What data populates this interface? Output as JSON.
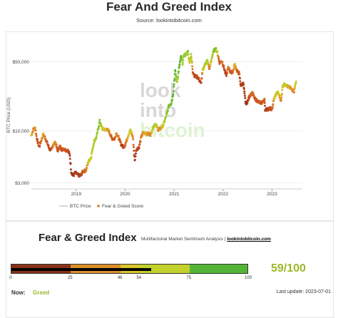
{
  "header": {
    "title": "Fear And Greed Index",
    "source": "Source: lookintobitcoin.com"
  },
  "chart_data": {
    "type": "scatter",
    "ylabel": "BTC Price (USD)",
    "yscale": "log",
    "ylim": [
      2600,
      80000
    ],
    "y_ticks": [
      {
        "v": 3000,
        "label": "$3,000"
      },
      {
        "v": 10000,
        "label": "$10,000"
      },
      {
        "v": 50000,
        "label": "$50,000"
      }
    ],
    "xlim": [
      "2018-02-01",
      "2023-08-15"
    ],
    "x_ticks": [
      "2019",
      "2020",
      "2021",
      "2022",
      "2023"
    ],
    "legend": [
      "BTC Price",
      "Fear & Greed Score"
    ],
    "watermark": [
      "look",
      "into",
      "bitcoin"
    ],
    "series": [
      {
        "name": "BTC Price",
        "points": [
          [
            "2018-02-01",
            9000,
            55
          ],
          [
            "2018-02-15",
            10300,
            40
          ],
          [
            "2018-03-01",
            10800,
            45
          ],
          [
            "2018-03-15",
            8200,
            25
          ],
          [
            "2018-04-01",
            6900,
            20
          ],
          [
            "2018-04-15",
            8000,
            35
          ],
          [
            "2018-05-01",
            9200,
            50
          ],
          [
            "2018-05-15",
            8500,
            35
          ],
          [
            "2018-06-01",
            7500,
            25
          ],
          [
            "2018-06-15",
            6600,
            20
          ],
          [
            "2018-07-01",
            6400,
            20
          ],
          [
            "2018-07-15",
            7400,
            40
          ],
          [
            "2018-08-01",
            7600,
            45
          ],
          [
            "2018-08-15",
            6300,
            20
          ],
          [
            "2018-09-01",
            7000,
            30
          ],
          [
            "2018-09-15",
            6500,
            25
          ],
          [
            "2018-10-01",
            6600,
            25
          ],
          [
            "2018-10-15",
            6400,
            25
          ],
          [
            "2018-11-01",
            6350,
            25
          ],
          [
            "2018-11-15",
            5700,
            15
          ],
          [
            "2018-11-25",
            3900,
            10
          ],
          [
            "2018-12-10",
            3500,
            10
          ],
          [
            "2018-12-25",
            3800,
            15
          ],
          [
            "2019-01-15",
            3600,
            15
          ],
          [
            "2019-02-01",
            3500,
            15
          ],
          [
            "2019-02-20",
            3900,
            25
          ],
          [
            "2019-03-15",
            4000,
            35
          ],
          [
            "2019-04-03",
            4950,
            55
          ],
          [
            "2019-04-20",
            5300,
            60
          ],
          [
            "2019-05-15",
            7900,
            70
          ],
          [
            "2019-06-01",
            8600,
            72
          ],
          [
            "2019-06-26",
            12500,
            85
          ],
          [
            "2019-07-15",
            10500,
            60
          ],
          [
            "2019-08-01",
            10300,
            55
          ],
          [
            "2019-08-15",
            10400,
            50
          ],
          [
            "2019-09-01",
            10000,
            45
          ],
          [
            "2019-09-25",
            8400,
            25
          ],
          [
            "2019-10-15",
            8300,
            25
          ],
          [
            "2019-10-27",
            9500,
            45
          ],
          [
            "2019-11-15",
            8500,
            35
          ],
          [
            "2019-12-01",
            7400,
            20
          ],
          [
            "2019-12-18",
            6900,
            15
          ],
          [
            "2020-01-01",
            7200,
            30
          ],
          [
            "2020-01-20",
            8700,
            50
          ],
          [
            "2020-02-10",
            10200,
            60
          ],
          [
            "2020-02-28",
            8700,
            40
          ],
          [
            "2020-03-13",
            5000,
            10
          ],
          [
            "2020-03-25",
            6500,
            15
          ],
          [
            "2020-04-15",
            6900,
            20
          ],
          [
            "2020-05-01",
            8800,
            40
          ],
          [
            "2020-05-15",
            9600,
            45
          ],
          [
            "2020-06-01",
            9500,
            50
          ],
          [
            "2020-06-20",
            9300,
            45
          ],
          [
            "2020-07-10",
            9200,
            40
          ],
          [
            "2020-07-28",
            11000,
            65
          ],
          [
            "2020-08-15",
            11800,
            75
          ],
          [
            "2020-09-05",
            10200,
            40
          ],
          [
            "2020-09-25",
            10700,
            45
          ],
          [
            "2020-10-10",
            11300,
            55
          ],
          [
            "2020-10-25",
            13000,
            70
          ],
          [
            "2020-11-10",
            15300,
            80
          ],
          [
            "2020-11-25",
            18500,
            85
          ],
          [
            "2020-12-10",
            18800,
            85
          ],
          [
            "2020-12-25",
            24000,
            90
          ],
          [
            "2021-01-08",
            40000,
            94
          ],
          [
            "2021-01-22",
            31000,
            70
          ],
          [
            "2021-02-08",
            44000,
            90
          ],
          [
            "2021-02-21",
            56000,
            93
          ],
          [
            "2021-03-05",
            48000,
            70
          ],
          [
            "2021-03-15",
            58000,
            80
          ],
          [
            "2021-04-01",
            59000,
            75
          ],
          [
            "2021-04-14",
            63500,
            80
          ],
          [
            "2021-04-25",
            49000,
            55
          ],
          [
            "2021-05-08",
            58000,
            70
          ],
          [
            "2021-05-20",
            40000,
            25
          ],
          [
            "2021-06-01",
            36000,
            20
          ],
          [
            "2021-06-20",
            35000,
            20
          ],
          [
            "2021-07-01",
            34000,
            20
          ],
          [
            "2021-07-20",
            30000,
            15
          ],
          [
            "2021-08-01",
            40000,
            50
          ],
          [
            "2021-08-15",
            46000,
            70
          ],
          [
            "2021-09-05",
            51000,
            75
          ],
          [
            "2021-09-20",
            43000,
            30
          ],
          [
            "2021-10-01",
            48000,
            60
          ],
          [
            "2021-10-20",
            64000,
            80
          ],
          [
            "2021-11-10",
            67000,
            83
          ],
          [
            "2021-11-25",
            57000,
            40
          ],
          [
            "2021-12-05",
            49000,
            25
          ],
          [
            "2021-12-25",
            50500,
            35
          ],
          [
            "2022-01-10",
            42000,
            20
          ],
          [
            "2022-01-24",
            36000,
            15
          ],
          [
            "2022-02-10",
            44000,
            40
          ],
          [
            "2022-02-25",
            39000,
            25
          ],
          [
            "2022-03-15",
            39500,
            30
          ],
          [
            "2022-03-29",
            47000,
            55
          ],
          [
            "2022-04-15",
            40000,
            30
          ],
          [
            "2022-05-01",
            38000,
            25
          ],
          [
            "2022-05-12",
            29000,
            15
          ],
          [
            "2022-06-01",
            30000,
            15
          ],
          [
            "2022-06-18",
            19000,
            10
          ],
          [
            "2022-07-01",
            19500,
            12
          ],
          [
            "2022-07-20",
            23000,
            25
          ],
          [
            "2022-08-10",
            24000,
            35
          ],
          [
            "2022-08-25",
            21000,
            25
          ],
          [
            "2022-09-15",
            20000,
            25
          ],
          [
            "2022-10-01",
            19300,
            25
          ],
          [
            "2022-10-20",
            19200,
            25
          ],
          [
            "2022-11-05",
            21000,
            30
          ],
          [
            "2022-11-10",
            16500,
            15
          ],
          [
            "2022-11-25",
            16500,
            15
          ],
          [
            "2022-12-15",
            16800,
            20
          ],
          [
            "2023-01-01",
            16600,
            25
          ],
          [
            "2023-01-15",
            20800,
            50
          ],
          [
            "2023-02-01",
            23700,
            60
          ],
          [
            "2023-02-15",
            24500,
            60
          ],
          [
            "2023-03-10",
            20000,
            40
          ],
          [
            "2023-03-20",
            28000,
            60
          ],
          [
            "2023-04-10",
            30000,
            65
          ],
          [
            "2023-04-25",
            28000,
            50
          ],
          [
            "2023-05-10",
            27500,
            50
          ],
          [
            "2023-05-25",
            26500,
            45
          ],
          [
            "2023-06-15",
            25000,
            40
          ],
          [
            "2023-06-25",
            30500,
            65
          ],
          [
            "2023-07-01",
            30500,
            59
          ]
        ]
      }
    ]
  },
  "fg_panel": {
    "title": "Fear & Greed Index",
    "subtitle_prefix": "Multifactorial Market Sentiment Analysis | ",
    "subtitle_link": "lookintobitcoin.com",
    "score": 59,
    "score_text": "59/100",
    "gauge_ticks": [
      "0",
      "25",
      "46",
      "54",
      "75",
      "100"
    ],
    "gauge_segments": [
      {
        "from": 0,
        "to": 25,
        "color": "#8a3018"
      },
      {
        "from": 25,
        "to": 46,
        "color": "#d98f28"
      },
      {
        "from": 46,
        "to": 54,
        "color": "#d9c72a"
      },
      {
        "from": 54,
        "to": 75,
        "color": "#c2d12c"
      },
      {
        "from": 75,
        "to": 100,
        "color": "#52b536"
      }
    ],
    "now_label": "Now:",
    "now_value": "Greed",
    "last_update": "Last update: 2023-07-01"
  }
}
